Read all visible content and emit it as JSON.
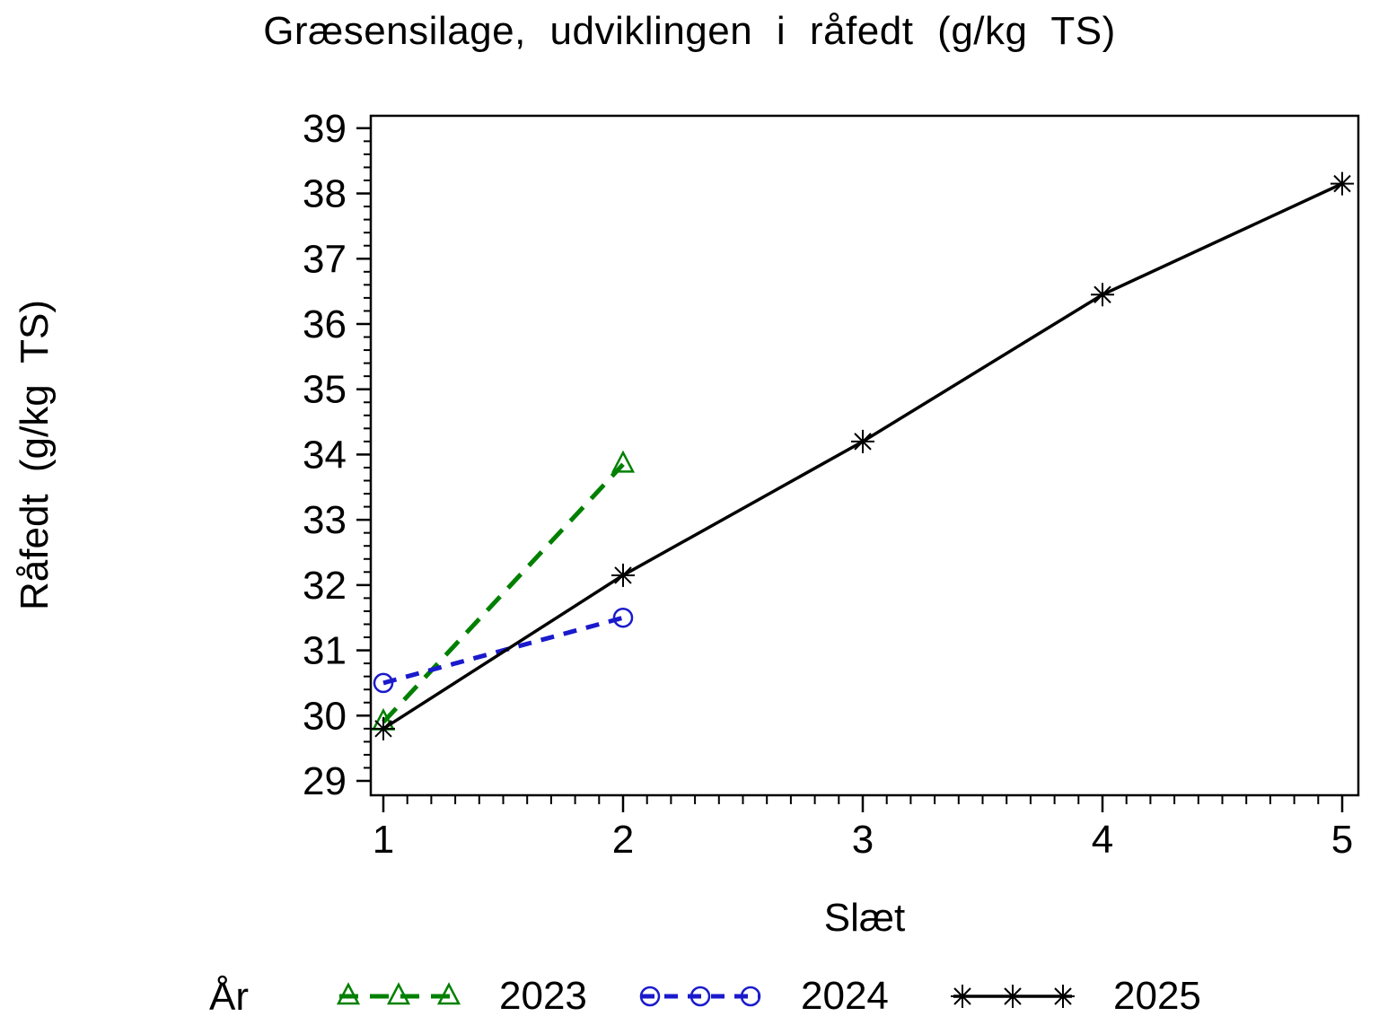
{
  "title": "Græsensilage, udviklingen i råfedt (g/kg TS)",
  "chart_data": {
    "type": "line",
    "title": "Græsensilage, udviklingen i råfedt (g/kg TS)",
    "xlabel": "Slæt",
    "ylabel": "Råfedt (g/kg TS)",
    "legend_title": "År",
    "legend_position": "bottom",
    "grid": false,
    "xlim": [
      0.9476,
      5.0674
    ],
    "ylim": [
      28.78,
      39.19
    ],
    "x_major_ticks": [
      1,
      2,
      3,
      4,
      5
    ],
    "x_minor_step": 0.1,
    "y_major_ticks": [
      29,
      30,
      31,
      32,
      33,
      34,
      35,
      36,
      37,
      38,
      39
    ],
    "y_minor_step": 0.2,
    "series": [
      {
        "name": "2023",
        "color": "#008000",
        "marker": "triangle",
        "dash": "21 13",
        "stroke_width": 5,
        "x": [
          1,
          2
        ],
        "y": [
          29.9,
          33.85
        ]
      },
      {
        "name": "2024",
        "color": "#1a1acc",
        "marker": "circle",
        "dash": "15 11",
        "stroke_width": 5,
        "x": [
          1,
          2
        ],
        "y": [
          30.5,
          31.5
        ]
      },
      {
        "name": "2025",
        "color": "#000000",
        "marker": "asterisk",
        "dash": null,
        "stroke_width": 3.5,
        "x": [
          1,
          2,
          3,
          4,
          5
        ],
        "y": [
          29.8,
          32.15,
          34.2,
          36.45,
          38.15
        ]
      }
    ]
  }
}
